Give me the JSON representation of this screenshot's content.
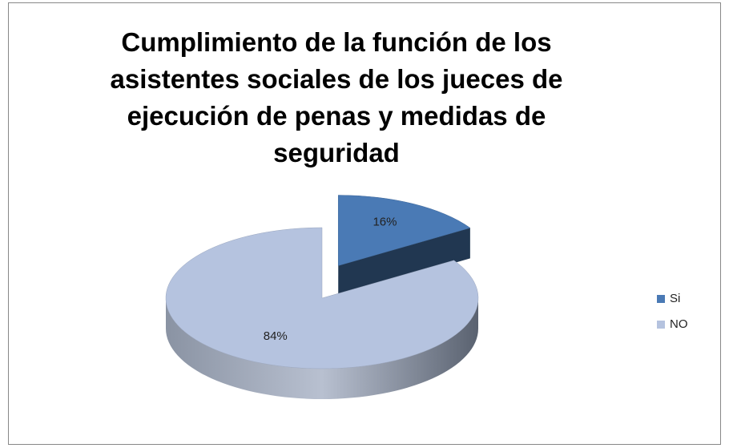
{
  "chart_data": {
    "type": "pie3d",
    "title": "Cumplimiento de la función de los asistentes sociales de los jueces de ejecución de penas y medidas de seguridad",
    "categories": [
      "Si",
      "NO"
    ],
    "values": [
      16,
      84
    ],
    "value_labels": [
      "16%",
      "84%"
    ],
    "colors": [
      "#4a7ab5",
      "#b5c3df"
    ],
    "legend": "right"
  }
}
